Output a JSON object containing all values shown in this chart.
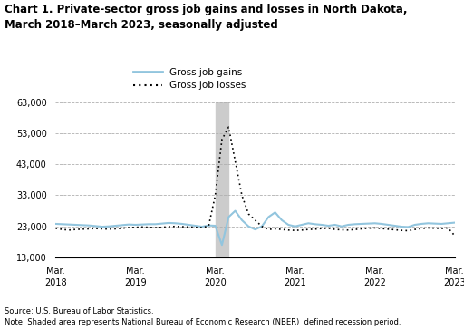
{
  "title": "Chart 1. Private-sector gross job gains and losses in North Dakota,\nMarch 2018–March 2023, seasonally adjusted",
  "source": "Source: U.S. Bureau of Labor Statistics.",
  "note": "Note: Shaded area represents National Bureau of Economic Research (NBER)  defined recession period.",
  "legend_gains": "Gross job gains",
  "legend_losses": "Gross job losses",
  "ylim": [
    13000,
    63000
  ],
  "yticks": [
    13000,
    23000,
    33000,
    43000,
    53000,
    63000
  ],
  "ytick_labels": [
    "13,000",
    "23,000",
    "33,000",
    "43,000",
    "53,000",
    "63,000"
  ],
  "recession_start": 24,
  "recession_end": 26,
  "gains_color": "#92c5de",
  "losses_color": "#000000",
  "background_color": "#ffffff",
  "grid_color": "#b0b0b0",
  "shading_color": "#cccccc",
  "x_tick_positions": [
    0,
    12,
    24,
    36,
    48,
    60
  ],
  "x_tick_labels": [
    "Mar.\n2018",
    "Mar.\n2019",
    "Mar.\n2020",
    "Mar.\n2021",
    "Mar.\n2022",
    "Mar.\n2023"
  ],
  "gross_job_gains": [
    23800,
    23700,
    23600,
    23500,
    23400,
    23300,
    23100,
    22900,
    23000,
    23200,
    23400,
    23600,
    23500,
    23600,
    23700,
    23700,
    23900,
    24100,
    24000,
    23800,
    23500,
    23200,
    22900,
    23300,
    23200,
    17000,
    26000,
    28000,
    25000,
    23000,
    22000,
    23000,
    26000,
    27500,
    25000,
    23500,
    23000,
    23500,
    24000,
    23700,
    23500,
    23200,
    23500,
    23000,
    23500,
    23700,
    23800,
    23900,
    24000,
    23800,
    23500,
    23200,
    22900,
    22800,
    23500,
    23800,
    24000,
    23900,
    23800,
    24000,
    24200
  ],
  "gross_job_losses": [
    22400,
    22000,
    21800,
    22000,
    22100,
    22200,
    22300,
    22200,
    22100,
    22200,
    22400,
    22600,
    22700,
    22800,
    22700,
    22600,
    22700,
    22900,
    23000,
    22900,
    22800,
    22700,
    22600,
    23100,
    33000,
    51000,
    55000,
    44000,
    33000,
    27000,
    25000,
    23000,
    22000,
    22200,
    22000,
    21800,
    21700,
    21800,
    22000,
    22100,
    22300,
    22400,
    22000,
    21900,
    21800,
    22000,
    22200,
    22400,
    22500,
    22300,
    22100,
    21900,
    21700,
    21600,
    22000,
    22300,
    22500,
    22400,
    22300,
    22500,
    20000
  ]
}
